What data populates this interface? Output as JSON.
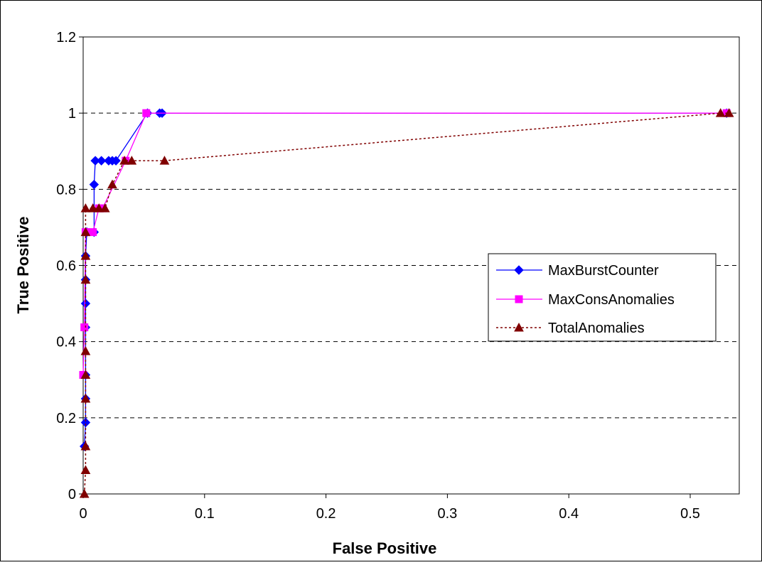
{
  "chart_data": {
    "type": "line",
    "title": "",
    "xlabel": "False Positive",
    "ylabel": "True Positive",
    "xlim": [
      0,
      0.55
    ],
    "ylim": [
      0,
      1.2
    ],
    "x_ticks": [
      "0",
      "0.1",
      "0.2",
      "0.3",
      "0.4",
      "0.5"
    ],
    "y_ticks": [
      "0",
      "0.2",
      "0.4",
      "0.6",
      "0.8",
      "1",
      "1.2"
    ],
    "grid": "horizontal dashed",
    "legend_position": "right",
    "series": [
      {
        "name": "MaxBurstCounter",
        "color": "#0000ff",
        "marker": "diamond",
        "line": "solid",
        "points": [
          [
            0.001,
            0.125
          ],
          [
            0.002,
            0.1875
          ],
          [
            0.002,
            0.25
          ],
          [
            0.002,
            0.3125
          ],
          [
            0.002,
            0.4375
          ],
          [
            0.002,
            0.5
          ],
          [
            0.002,
            0.5625
          ],
          [
            0.002,
            0.625
          ],
          [
            0.003,
            0.6875
          ],
          [
            0.009,
            0.6875
          ],
          [
            0.009,
            0.8125
          ],
          [
            0.01,
            0.875
          ],
          [
            0.015,
            0.875
          ],
          [
            0.021,
            0.875
          ],
          [
            0.024,
            0.875
          ],
          [
            0.027,
            0.875
          ],
          [
            0.053,
            1.0
          ],
          [
            0.063,
            1.0
          ],
          [
            0.065,
            1.0
          ],
          [
            0.53,
            1.0
          ]
        ]
      },
      {
        "name": "MaxConsAnomalies",
        "color": "#ff00ff",
        "marker": "square",
        "line": "solid",
        "points": [
          [
            0.0,
            0.3125
          ],
          [
            0.001,
            0.4375
          ],
          [
            0.002,
            0.6875
          ],
          [
            0.008,
            0.6875
          ],
          [
            0.013,
            0.75
          ],
          [
            0.016,
            0.75
          ],
          [
            0.035,
            0.875
          ],
          [
            0.052,
            1.0
          ],
          [
            0.53,
            1.0
          ]
        ]
      },
      {
        "name": "TotalAnomalies",
        "color": "#800000",
        "marker": "triangle",
        "line": "dotted",
        "points": [
          [
            0.001,
            0.0
          ],
          [
            0.002,
            0.0625
          ],
          [
            0.002,
            0.125
          ],
          [
            0.002,
            0.25
          ],
          [
            0.002,
            0.3125
          ],
          [
            0.002,
            0.375
          ],
          [
            0.002,
            0.5625
          ],
          [
            0.002,
            0.625
          ],
          [
            0.002,
            0.6875
          ],
          [
            0.002,
            0.75
          ],
          [
            0.008,
            0.75
          ],
          [
            0.013,
            0.75
          ],
          [
            0.018,
            0.75
          ],
          [
            0.024,
            0.8125
          ],
          [
            0.034,
            0.875
          ],
          [
            0.04,
            0.875
          ],
          [
            0.067,
            0.875
          ],
          [
            0.525,
            1.0
          ],
          [
            0.532,
            1.0
          ]
        ]
      }
    ]
  }
}
